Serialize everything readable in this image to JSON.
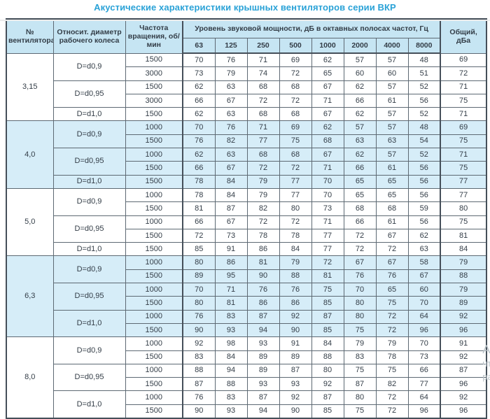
{
  "title": "Акустические характеристики крышных вентиляторов серии ВКР",
  "table": {
    "headers": {
      "fan_number": "№ вентилятора",
      "diameter": "Относит. диаметр рабочего колеса",
      "speed": "Частота вращения, об/мин",
      "spl_group": "Уровень звуковой мощности, дБ в октавных полосах частот, Гц",
      "frequencies": [
        "63",
        "125",
        "250",
        "500",
        "1000",
        "2000",
        "4000",
        "8000"
      ],
      "total": "Общий, дБа"
    },
    "sections": [
      {
        "fan": "3,15",
        "shaded": false,
        "groups": [
          {
            "diameter": "D=d0,9",
            "rows": [
              {
                "speed": "1500",
                "levels": [
                  70,
                  76,
                  71,
                  69,
                  62,
                  57,
                  57,
                  48
                ],
                "total": 69
              },
              {
                "speed": "3000",
                "levels": [
                  73,
                  79,
                  74,
                  72,
                  65,
                  60,
                  60,
                  51
                ],
                "total": 72
              }
            ]
          },
          {
            "diameter": "D=d0,95",
            "rows": [
              {
                "speed": "1500",
                "levels": [
                  62,
                  63,
                  68,
                  68,
                  67,
                  62,
                  57,
                  52
                ],
                "total": 71
              },
              {
                "speed": "3000",
                "levels": [
                  66,
                  67,
                  72,
                  72,
                  71,
                  66,
                  61,
                  56
                ],
                "total": 75
              }
            ]
          },
          {
            "diameter": "D=d1,0",
            "rows": [
              {
                "speed": "1500",
                "levels": [
                  62,
                  63,
                  68,
                  68,
                  67,
                  62,
                  57,
                  52
                ],
                "total": 71
              }
            ]
          }
        ]
      },
      {
        "fan": "4,0",
        "shaded": true,
        "groups": [
          {
            "diameter": "D=d0,9",
            "rows": [
              {
                "speed": "1000",
                "levels": [
                  70,
                  76,
                  71,
                  69,
                  62,
                  57,
                  57,
                  48
                ],
                "total": 69
              },
              {
                "speed": "1500",
                "levels": [
                  76,
                  82,
                  77,
                  75,
                  68,
                  63,
                  63,
                  54
                ],
                "total": 75
              }
            ]
          },
          {
            "diameter": "D=d0,95",
            "rows": [
              {
                "speed": "1000",
                "levels": [
                  62,
                  63,
                  68,
                  68,
                  67,
                  62,
                  57,
                  52
                ],
                "total": 71
              },
              {
                "speed": "1500",
                "levels": [
                  66,
                  67,
                  72,
                  72,
                  71,
                  66,
                  61,
                  56
                ],
                "total": 75
              }
            ]
          },
          {
            "diameter": "D=d1,0",
            "rows": [
              {
                "speed": "1500",
                "levels": [
                  78,
                  84,
                  79,
                  77,
                  70,
                  65,
                  65,
                  56
                ],
                "total": 77
              }
            ]
          }
        ]
      },
      {
        "fan": "5,0",
        "shaded": false,
        "groups": [
          {
            "diameter": "D=d0,9",
            "rows": [
              {
                "speed": "1000",
                "levels": [
                  78,
                  84,
                  79,
                  77,
                  70,
                  65,
                  65,
                  56
                ],
                "total": 77
              },
              {
                "speed": "1500",
                "levels": [
                  81,
                  87,
                  82,
                  80,
                  73,
                  68,
                  68,
                  59
                ],
                "total": 80
              }
            ]
          },
          {
            "diameter": "D=d0,95",
            "rows": [
              {
                "speed": "1000",
                "levels": [
                  66,
                  67,
                  72,
                  72,
                  71,
                  66,
                  61,
                  56
                ],
                "total": 75
              },
              {
                "speed": "1500",
                "levels": [
                  72,
                  73,
                  78,
                  78,
                  77,
                  72,
                  67,
                  62
                ],
                "total": 81
              }
            ]
          },
          {
            "diameter": "D=d1,0",
            "rows": [
              {
                "speed": "1500",
                "levels": [
                  85,
                  91,
                  86,
                  84,
                  77,
                  72,
                  72,
                  63
                ],
                "total": 84
              }
            ]
          }
        ]
      },
      {
        "fan": "6,3",
        "shaded": true,
        "groups": [
          {
            "diameter": "D=d0,9",
            "rows": [
              {
                "speed": "1000",
                "levels": [
                  80,
                  86,
                  81,
                  79,
                  72,
                  67,
                  67,
                  58
                ],
                "total": 79
              },
              {
                "speed": "1500",
                "levels": [
                  89,
                  95,
                  90,
                  88,
                  81,
                  76,
                  76,
                  67
                ],
                "total": 88
              }
            ]
          },
          {
            "diameter": "D=d0,95",
            "rows": [
              {
                "speed": "1000",
                "levels": [
                  70,
                  71,
                  76,
                  76,
                  75,
                  70,
                  65,
                  60
                ],
                "total": 79
              },
              {
                "speed": "1500",
                "levels": [
                  80,
                  81,
                  86,
                  86,
                  85,
                  80,
                  75,
                  70
                ],
                "total": 89
              }
            ]
          },
          {
            "diameter": "D=d1,0",
            "rows": [
              {
                "speed": "1000",
                "levels": [
                  76,
                  83,
                  87,
                  92,
                  87,
                  80,
                  72,
                  64
                ],
                "total": 92
              },
              {
                "speed": "1500",
                "levels": [
                  90,
                  93,
                  94,
                  90,
                  85,
                  75,
                  72,
                  96
                ],
                "total": 96
              }
            ]
          }
        ]
      },
      {
        "fan": "8,0",
        "shaded": false,
        "groups": [
          {
            "diameter": "D=d0,9",
            "rows": [
              {
                "speed": "1000",
                "levels": [
                  92,
                  98,
                  93,
                  91,
                  84,
                  79,
                  79,
                  70
                ],
                "total": 91
              },
              {
                "speed": "1500",
                "levels": [
                  83,
                  84,
                  89,
                  89,
                  88,
                  83,
                  78,
                  73
                ],
                "total": 92
              }
            ]
          },
          {
            "diameter": "D=d0,95",
            "rows": [
              {
                "speed": "1000",
                "levels": [
                  88,
                  94,
                  89,
                  87,
                  80,
                  75,
                  75,
                  66
                ],
                "total": 87
              },
              {
                "speed": "1500",
                "levels": [
                  87,
                  88,
                  93,
                  93,
                  92,
                  87,
                  82,
                  77
                ],
                "total": 96
              }
            ]
          },
          {
            "diameter": "D=d1,0",
            "rows": [
              {
                "speed": "1000",
                "levels": [
                  76,
                  83,
                  87,
                  92,
                  87,
                  80,
                  72,
                  64
                ],
                "total": 92
              },
              {
                "speed": "1500",
                "levels": [
                  90,
                  93,
                  94,
                  90,
                  85,
                  75,
                  72,
                  96
                ],
                "total": 96
              }
            ]
          }
        ]
      }
    ]
  },
  "watermark": {
    "lines": [
      "Ак",
      "чт",
      "ра"
    ]
  },
  "colors": {
    "title": "#2aa2d7",
    "header_bg": "#c6e5f3",
    "shaded_row_bg": "#d6edf8",
    "border": "#5d6973",
    "text": "#333d47"
  }
}
